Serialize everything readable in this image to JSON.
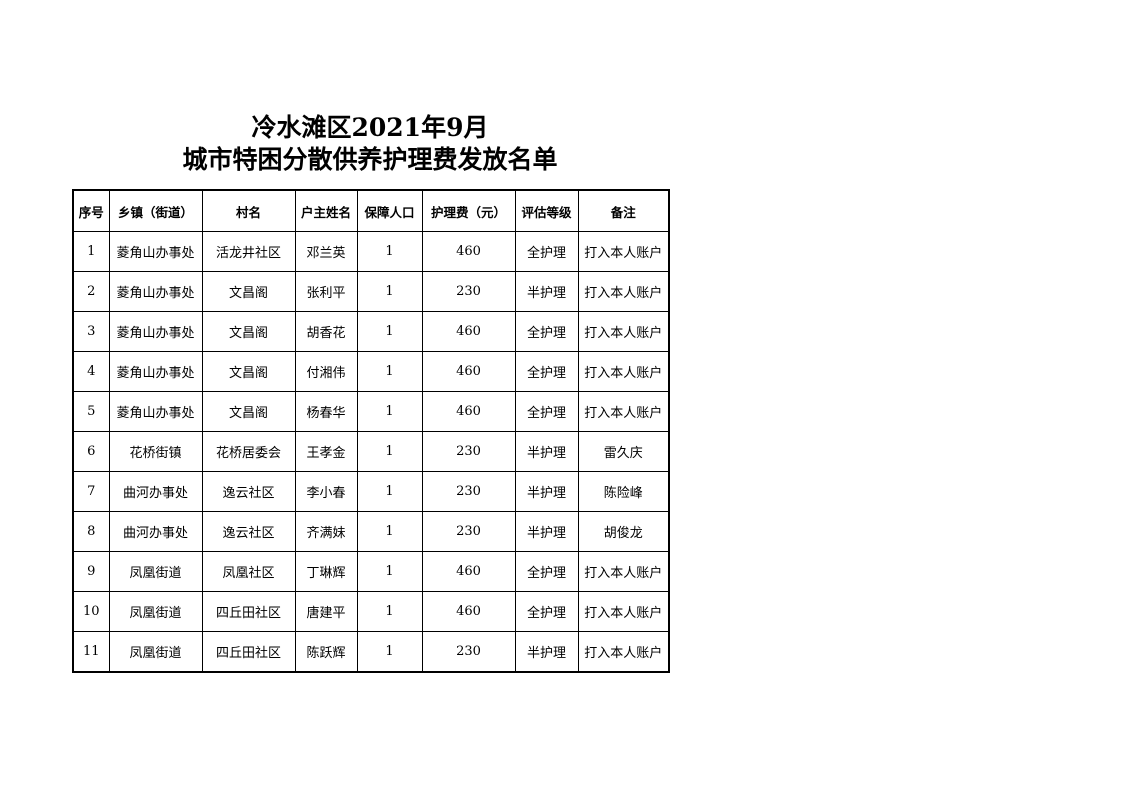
{
  "title": {
    "line1": "冷水滩区2021年9月",
    "line2": "城市特困分散供养护理费发放名单"
  },
  "table": {
    "headers": [
      "序号",
      "乡镇（街道）",
      "村名",
      "户主姓名",
      "保障人口",
      "护理费（元）",
      "评估等级",
      "备注"
    ],
    "rows": [
      [
        "1",
        "菱角山办事处",
        "活龙井社区",
        "邓兰英",
        "1",
        "460",
        "全护理",
        "打入本人账户"
      ],
      [
        "2",
        "菱角山办事处",
        "文昌阁",
        "张利平",
        "1",
        "230",
        "半护理",
        "打入本人账户"
      ],
      [
        "3",
        "菱角山办事处",
        "文昌阁",
        "胡香花",
        "1",
        "460",
        "全护理",
        "打入本人账户"
      ],
      [
        "4",
        "菱角山办事处",
        "文昌阁",
        "付湘伟",
        "1",
        "460",
        "全护理",
        "打入本人账户"
      ],
      [
        "5",
        "菱角山办事处",
        "文昌阁",
        "杨春华",
        "1",
        "460",
        "全护理",
        "打入本人账户"
      ],
      [
        "6",
        "花桥街镇",
        "花桥居委会",
        "王孝金",
        "1",
        "230",
        "半护理",
        "雷久庆"
      ],
      [
        "7",
        "曲河办事处",
        "逸云社区",
        "李小春",
        "1",
        "230",
        "半护理",
        "陈险峰"
      ],
      [
        "8",
        "曲河办事处",
        "逸云社区",
        "齐满妹",
        "1",
        "230",
        "半护理",
        "胡俊龙"
      ],
      [
        "9",
        "凤凰街道",
        "凤凰社区",
        "丁琳辉",
        "1",
        "460",
        "全护理",
        "打入本人账户"
      ],
      [
        "10",
        "凤凰街道",
        "四丘田社区",
        "唐建平",
        "1",
        "460",
        "全护理",
        "打入本人账户"
      ],
      [
        "11",
        "凤凰街道",
        "四丘田社区",
        "陈跃辉",
        "1",
        "230",
        "半护理",
        "打入本人账户"
      ]
    ]
  }
}
